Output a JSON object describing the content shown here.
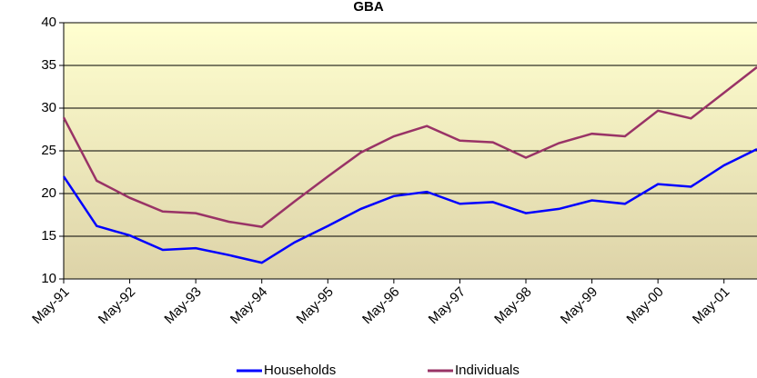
{
  "chart_data": {
    "type": "line",
    "title": "GBA",
    "categories": [
      "May-91",
      null,
      "May-92",
      null,
      "May-93",
      null,
      "May-94",
      null,
      "May-95",
      null,
      "May-96",
      null,
      "May-97",
      null,
      "May-98",
      null,
      "May-99",
      null,
      "May-00",
      null,
      "May-01",
      null
    ],
    "series": [
      {
        "name": "Households",
        "color": "#0000ff",
        "values": [
          22,
          16.2,
          15.1,
          13.4,
          13.6,
          12.8,
          11.9,
          14.3,
          16.2,
          18.2,
          19.7,
          20.2,
          18.8,
          19.0,
          17.7,
          18.2,
          19.2,
          18.8,
          21.1,
          20.8,
          23.3,
          25.2
        ]
      },
      {
        "name": "Individuals",
        "color": "#993366",
        "values": [
          28.9,
          21.5,
          19.5,
          17.9,
          17.7,
          16.7,
          16.1,
          19.1,
          22.0,
          24.8,
          26.7,
          27.9,
          26.2,
          26.0,
          24.2,
          25.9,
          27.0,
          26.7,
          29.7,
          28.8,
          31.8,
          34.8
        ]
      }
    ],
    "ylim": [
      10,
      40
    ],
    "yticks": [
      10,
      15,
      20,
      25,
      30,
      35,
      40
    ],
    "grid": true,
    "legend": "bottom"
  }
}
